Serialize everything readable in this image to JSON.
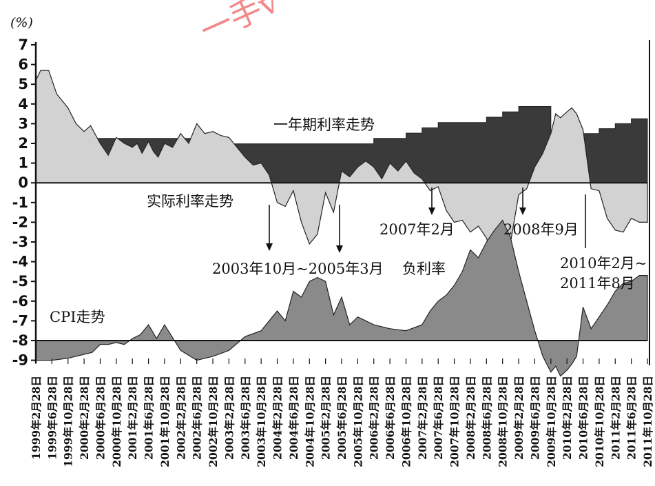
{
  "chart_data": {
    "type": "area",
    "y_unit_label": "(%)",
    "ylim": [
      -9,
      7
    ],
    "y_ticks": [
      7,
      6,
      5,
      4,
      3,
      2,
      1,
      0,
      -1,
      -2,
      -3,
      -4,
      -5,
      -6,
      -7,
      -8,
      -9
    ],
    "x_tick_labels": [
      "1999年2月28日",
      "1999年6月28日",
      "1999年10月28日",
      "2000年2月28日",
      "2000年6月28日",
      "2000年10月28日",
      "2001年2月28日",
      "2001年6月28日",
      "2001年10月28日",
      "2002年2月28日",
      "2002年6月28日",
      "2002年10月28日",
      "2003年2月28日",
      "2003年6月28日",
      "2003年10月28日",
      "2004年2月28日",
      "2004年6月28日",
      "2004年10月28日",
      "2005年2月28日",
      "2005年6月28日",
      "2005年10月28日",
      "2006年2月28日",
      "2006年6月28日",
      "2006年10月28日",
      "2007年2月28日",
      "2007年6月28日",
      "2007年10月28日",
      "2008年2月28日",
      "2008年6月28日",
      "2008年10月28日",
      "2009年2月28日",
      "2009年6月28日",
      "2009年10月28日",
      "2010年2月28日",
      "2010年6月28日",
      "2010年10月28日",
      "2011年2月28日",
      "2011年6月28日",
      "2011年10月28日"
    ],
    "series": [
      {
        "name": "一年期利率走势",
        "color": "#3a3a3a",
        "x": [
          0,
          2,
          2,
          12,
          12,
          21,
          21,
          23,
          23,
          24,
          24,
          25,
          25,
          28,
          28,
          29,
          29,
          30,
          30,
          32,
          32,
          34,
          34,
          35,
          35,
          36,
          36,
          37,
          37,
          38
        ],
        "values": [
          2.25,
          2.25,
          2.25,
          2.25,
          1.98,
          1.98,
          2.25,
          2.25,
          2.52,
          2.52,
          2.79,
          2.79,
          3.06,
          3.06,
          3.33,
          3.33,
          3.6,
          3.6,
          3.87,
          3.87,
          2.25,
          2.25,
          2.5,
          2.5,
          2.75,
          2.75,
          3.0,
          3.0,
          3.25,
          3.25
        ]
      },
      {
        "name": "实际利率走势",
        "color": "#d2d2d2",
        "x": [
          0,
          0.3,
          0.8,
          1.3,
          2,
          2.5,
          3,
          3.4,
          4,
          4.5,
          5,
          5.5,
          6,
          6.3,
          6.6,
          7,
          7.3,
          7.6,
          8,
          8.5,
          9,
          9.5,
          10,
          10.5,
          11,
          11.5,
          12,
          12.5,
          13,
          13.5,
          14,
          14.5,
          15,
          15.5,
          16,
          16.5,
          17,
          17.5,
          18,
          18.5,
          19,
          19.5,
          20,
          20.5,
          21,
          21.5,
          22,
          22.5,
          23,
          23.5,
          24,
          24.5,
          25,
          25.5,
          26,
          26.5,
          27,
          27.5,
          28,
          28.5,
          29,
          29.5,
          30,
          30.5,
          31,
          31.5,
          32,
          32.3,
          32.6,
          33,
          33.3,
          33.6,
          34,
          34.5,
          35,
          35.5,
          36,
          36.5,
          37,
          37.5,
          38
        ],
        "values": [
          5.2,
          5.7,
          5.7,
          4.5,
          3.8,
          3.0,
          2.6,
          2.9,
          2.0,
          1.4,
          2.3,
          2.0,
          1.8,
          2.0,
          1.5,
          2.1,
          1.6,
          1.3,
          2.0,
          1.8,
          2.5,
          2.0,
          3.0,
          2.5,
          2.6,
          2.4,
          2.3,
          1.8,
          1.3,
          0.9,
          1.0,
          0.4,
          -1.0,
          -1.2,
          -0.4,
          -2.0,
          -3.1,
          -2.6,
          -0.5,
          -1.5,
          0.6,
          0.3,
          0.8,
          1.1,
          0.8,
          0.2,
          1.0,
          0.6,
          1.1,
          0.5,
          0.2,
          -0.4,
          -0.2,
          -1.4,
          -2.0,
          -1.9,
          -2.5,
          -2.2,
          -2.8,
          -4.0,
          -4.3,
          -3.0,
          -0.6,
          -0.3,
          0.8,
          1.5,
          2.5,
          3.5,
          3.3,
          3.6,
          3.8,
          3.5,
          2.7,
          -0.3,
          -0.4,
          -1.8,
          -2.4,
          -2.5,
          -1.8,
          -2.0,
          -2.0
        ]
      },
      {
        "name": "CPI走势",
        "color": "#8a8a8a",
        "x": [
          0,
          1,
          2,
          3,
          3.5,
          4,
          4.5,
          5,
          5.5,
          6,
          6.5,
          7,
          7.5,
          8,
          9,
          10,
          11,
          12,
          13,
          14,
          15,
          15.5,
          16,
          16.5,
          17,
          17.5,
          18,
          18.5,
          19,
          19.5,
          20,
          21,
          22,
          23,
          24,
          24.5,
          25,
          25.5,
          26,
          26.5,
          27,
          27.5,
          28,
          28.5,
          29,
          29.5,
          30,
          30.5,
          31,
          31.5,
          32,
          32.3,
          32.6,
          33,
          33.3,
          33.6,
          34,
          34.5,
          35,
          35.5,
          36,
          36.5,
          37,
          37.5,
          38
        ],
        "values": [
          -1.0,
          -1.0,
          -0.9,
          -0.7,
          -0.6,
          -0.2,
          -0.2,
          -0.1,
          -0.2,
          0.1,
          0.3,
          0.8,
          0.1,
          0.8,
          -0.5,
          -1.0,
          -0.8,
          -0.5,
          0.2,
          0.5,
          1.5,
          1.0,
          2.5,
          2.2,
          3.0,
          3.2,
          3.0,
          1.3,
          2.2,
          0.8,
          1.2,
          0.8,
          0.6,
          0.5,
          0.8,
          1.5,
          2.0,
          2.3,
          2.8,
          3.5,
          4.6,
          4.2,
          5.0,
          5.6,
          6.1,
          5.2,
          3.5,
          2.0,
          0.5,
          -0.8,
          -1.6,
          -1.3,
          -1.8,
          -1.5,
          -1.2,
          -0.8,
          1.7,
          0.6,
          1.2,
          1.8,
          2.5,
          2.9,
          3.0,
          3.3,
          3.3
        ]
      }
    ],
    "annotations": [
      {
        "text": "一年期利率走势"
      },
      {
        "text": "实际利率走势"
      },
      {
        "text": "2003年10月~2005年3月"
      },
      {
        "text": "负利率"
      },
      {
        "text": "2007年2月"
      },
      {
        "text": "2008年9月"
      },
      {
        "text": "2010年2月~"
      },
      {
        "text": "2011年8月"
      },
      {
        "text": "CPI走势"
      }
    ],
    "watermark": "一手v"
  }
}
